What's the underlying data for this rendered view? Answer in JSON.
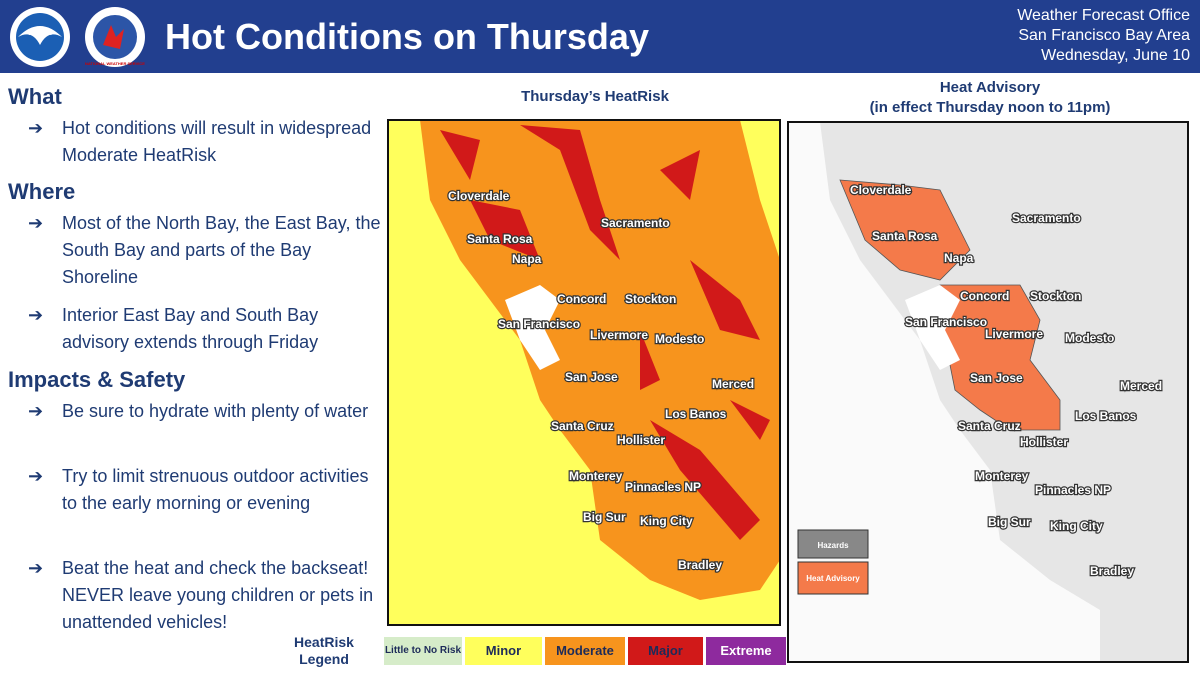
{
  "header": {
    "logo_left": "NOAA",
    "logo_right": "NATIONAL WEATHER SERVICE",
    "title": "Hot Conditions on Thursday",
    "office": [
      "Weather Forecast Office",
      "San Francisco Bay Area",
      "Wednesday, June 10"
    ]
  },
  "sections": [
    {
      "heading": "What",
      "bullets": [
        "Hot conditions will result in widespread Moderate HeatRisk"
      ]
    },
    {
      "heading": "Where",
      "bullets": [
        "Most of the North Bay, the East Bay, the South Bay and parts of the Bay Shoreline",
        "Interior East Bay and South Bay advisory extends through Friday"
      ]
    },
    {
      "heading": "Impacts & Safety",
      "bullets": [
        "Be sure to hydrate with plenty of water",
        "Try to limit strenuous outdoor activities to the early morning or evening",
        "Beat the heat and check the backseat! NEVER leave young children or pets in unattended vehicles!"
      ]
    }
  ],
  "heatrisk_map": {
    "title": "Thursday’s HeatRisk"
  },
  "advisory_map": {
    "title": [
      "Heat Advisory",
      "(in effect Thursday noon to 11pm)"
    ],
    "legend_header": "Hazards",
    "legend_item": "Heat Advisory"
  },
  "cities": [
    "Cloverdale",
    "Santa Rosa",
    "Napa",
    "Sacramento",
    "Concord",
    "Stockton",
    "San Francisco",
    "Livermore",
    "Modesto",
    "San Jose",
    "Merced",
    "Los Banos",
    "Santa Cruz",
    "Hollister",
    "Monterey",
    "Pinnacles NP",
    "Big Sur",
    "King City",
    "Bradley"
  ],
  "legend": {
    "title": [
      "HeatRisk",
      "Legend"
    ],
    "items": [
      {
        "label": "Little to No Risk",
        "color": "#d6ecc9",
        "text_color": "#1d2b59"
      },
      {
        "label": "Minor",
        "color": "#ffff5c",
        "text_color": "#1d2b59"
      },
      {
        "label": "Moderate",
        "color": "#f7941d",
        "text_color": "#1d2b59"
      },
      {
        "label": "Major",
        "color": "#d11919",
        "text_color": "#1d2b59"
      },
      {
        "label": "Extreme",
        "color": "#8e2a9e",
        "text_color": "#ffffff"
      }
    ]
  }
}
